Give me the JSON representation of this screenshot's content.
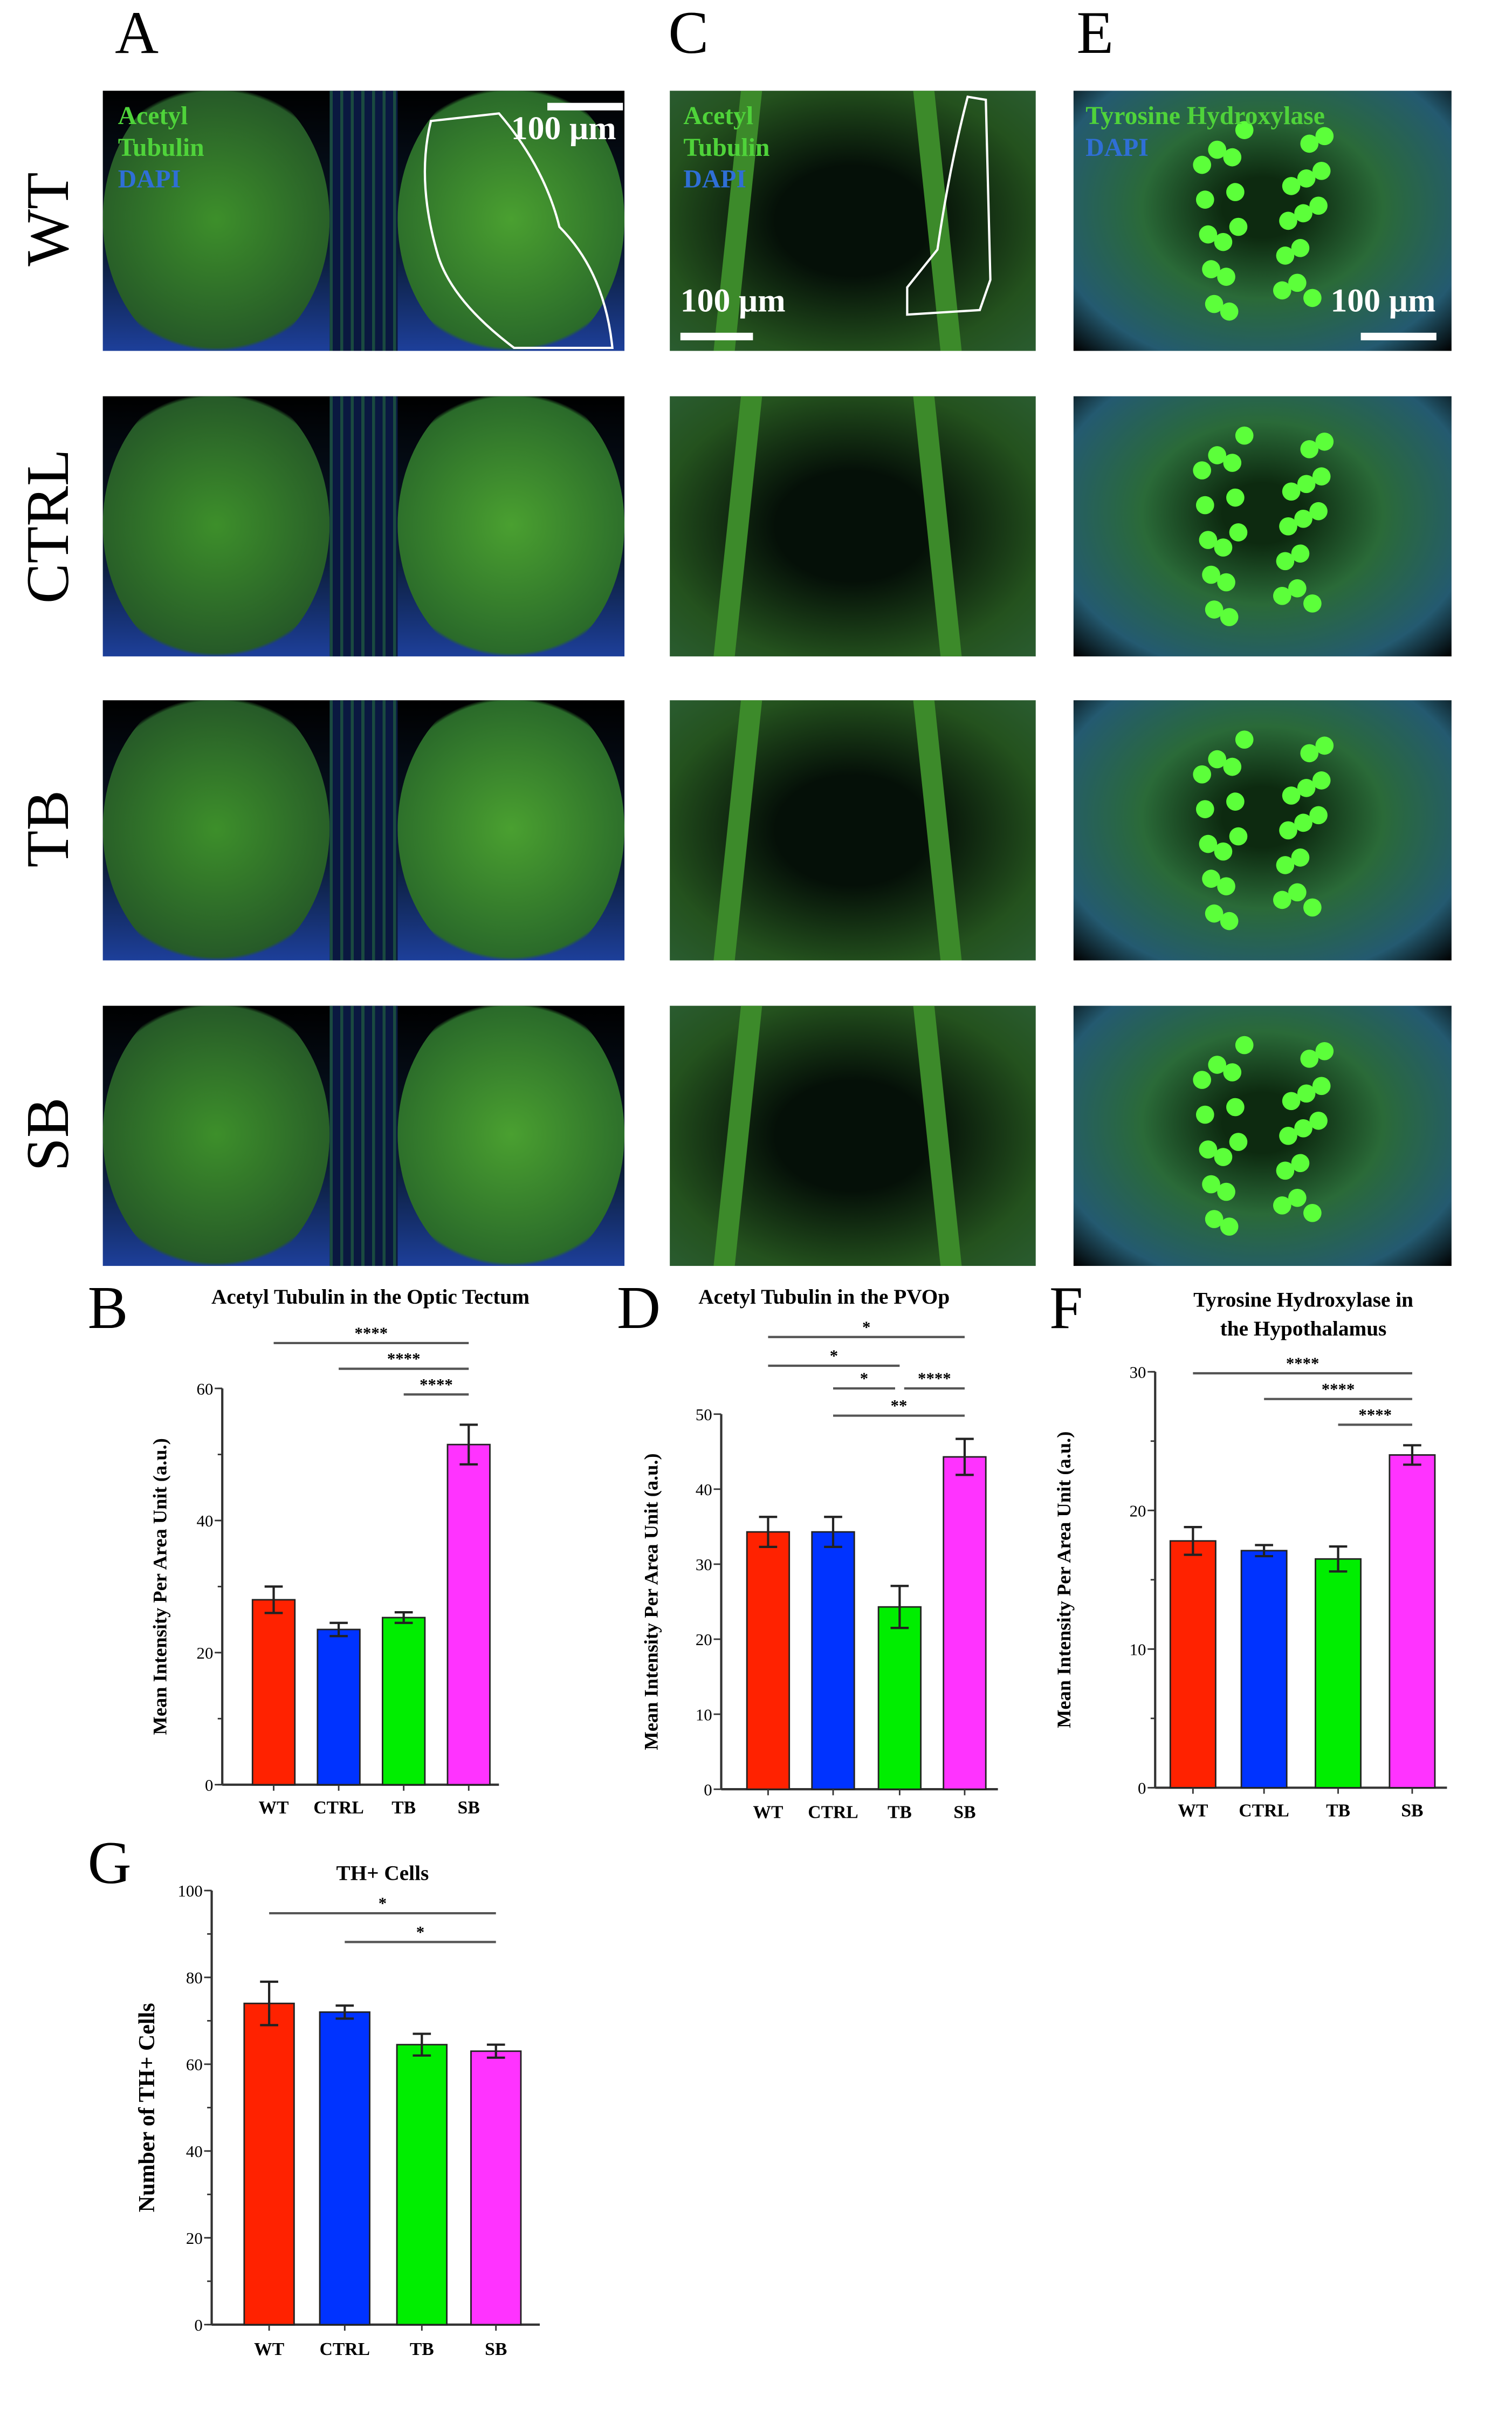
{
  "panel_letters": {
    "A": "A",
    "B": "B",
    "C": "C",
    "D": "D",
    "E": "E",
    "F": "F",
    "G": "G"
  },
  "row_labels": [
    "WT",
    "CTRL",
    "TB",
    "SB"
  ],
  "image_overlays": {
    "A": {
      "line1": "Acetyl",
      "line2": "Tubulin",
      "line3": "DAPI",
      "scale": "100 µm"
    },
    "C": {
      "line1": "Acetyl",
      "line2": "Tubulin",
      "line3": "DAPI",
      "scale": "100 µm"
    },
    "E": {
      "line1": "Tyrosine Hydroxylase",
      "line2": "DAPI",
      "scale": "100 µm"
    }
  },
  "colors": {
    "WT": "#ff2200",
    "CTRL": "#0033ff",
    "TB": "#00ee00",
    "SB": "#ff33ff"
  },
  "chart_data": [
    {
      "id": "B",
      "type": "bar",
      "title": [
        "Acetyl Tubulin in the Optic Tectum"
      ],
      "ylabel": "Mean Intensity Per Area Unit (a.u.)",
      "categories": [
        "WT",
        "CTRL",
        "TB",
        "SB"
      ],
      "values": [
        28,
        23.5,
        25.3,
        51.5
      ],
      "errors": [
        2,
        1,
        0.8,
        3
      ],
      "ylim": [
        0,
        60
      ],
      "yticks": [
        0,
        20,
        40,
        60
      ],
      "minor": 10,
      "significance": [
        {
          "from": 0,
          "to": 3,
          "label": "****"
        },
        {
          "from": 1,
          "to": 3,
          "label": "****"
        },
        {
          "from": 2,
          "to": 3,
          "label": "****"
        }
      ]
    },
    {
      "id": "D",
      "type": "bar",
      "title": [
        "Acetyl Tubulin in the PVOp"
      ],
      "ylabel": "Mean Intensity Per Area Unit (a.u.)",
      "categories": [
        "WT",
        "CTRL",
        "TB",
        "SB"
      ],
      "values": [
        34.3,
        34.3,
        24.3,
        44.3
      ],
      "errors": [
        2,
        2,
        2.8,
        2.4
      ],
      "ylim": [
        0,
        50
      ],
      "yticks": [
        0,
        10,
        20,
        30,
        40,
        50
      ],
      "minor": null,
      "significance": [
        {
          "from": 0,
          "to": 3,
          "label": "*"
        },
        {
          "from": 0,
          "to": 2,
          "label": "*"
        },
        {
          "from": 1,
          "to": 2,
          "label": "*"
        },
        {
          "from": 2,
          "to": 3,
          "label": "****"
        },
        {
          "from": 1,
          "to": 3,
          "label": "**"
        }
      ]
    },
    {
      "id": "F",
      "type": "bar",
      "title": [
        "Tyrosine Hydroxylase in",
        "the Hypothalamus"
      ],
      "ylabel": "Mean Intensity Per Area Unit (a.u.)",
      "categories": [
        "WT",
        "CTRL",
        "TB",
        "SB"
      ],
      "values": [
        17.8,
        17.1,
        16.5,
        24
      ],
      "errors": [
        1,
        0.4,
        0.9,
        0.7
      ],
      "ylim": [
        0,
        30
      ],
      "yticks": [
        0,
        10,
        20,
        30
      ],
      "minor": 5,
      "significance": [
        {
          "from": 0,
          "to": 3,
          "label": "****"
        },
        {
          "from": 1,
          "to": 3,
          "label": "****"
        },
        {
          "from": 2,
          "to": 3,
          "label": "****"
        }
      ]
    },
    {
      "id": "G",
      "type": "bar",
      "title": [
        "TH+ Cells"
      ],
      "ylabel": "Number of TH+ Cells",
      "categories": [
        "WT",
        "CTRL",
        "TB",
        "SB"
      ],
      "values": [
        74,
        72,
        64.5,
        63
      ],
      "errors": [
        5,
        1.5,
        2.5,
        1.5
      ],
      "ylim": [
        0,
        100
      ],
      "yticks": [
        0,
        20,
        40,
        60,
        80,
        100
      ],
      "minor": 10,
      "significance": [
        {
          "from": 0,
          "to": 3,
          "label": "*"
        },
        {
          "from": 1,
          "to": 3,
          "label": "*"
        }
      ]
    }
  ]
}
